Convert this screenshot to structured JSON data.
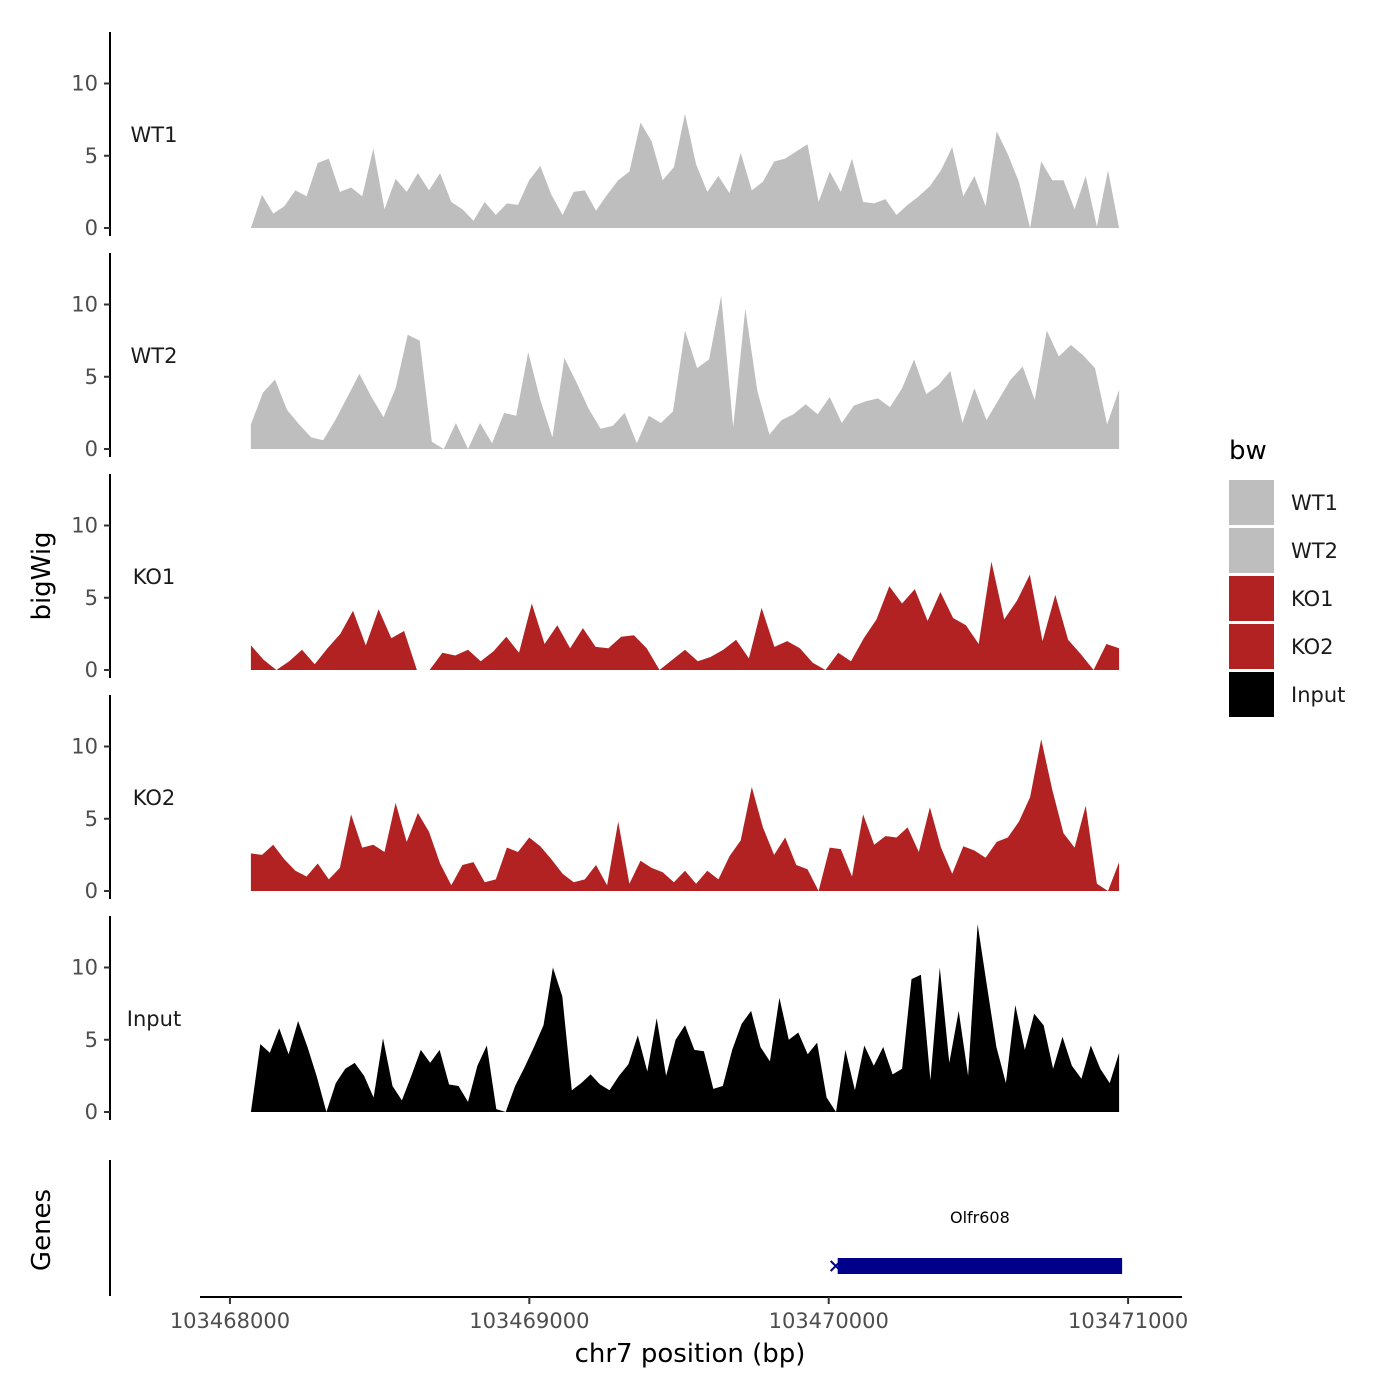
{
  "chart_data": {
    "type": "area",
    "title": "",
    "xlabel": "chr7 position (bp)",
    "ylabel": "bigWig",
    "genes_label": "Genes",
    "x_range": [
      103468070,
      103470970
    ],
    "xlim": [
      103467900,
      103471180
    ],
    "x_ticks": [
      103468000,
      103469000,
      103470000,
      103471000
    ],
    "x_tick_labels": [
      "103468000",
      "103469000",
      "103470000",
      "103471000"
    ],
    "ylim": [
      0,
      13.5
    ],
    "y_ticks": [
      0,
      5,
      10
    ],
    "y_tick_labels": [
      "0",
      "5",
      "10"
    ],
    "legend": {
      "title": "bw",
      "position": "right",
      "entries": [
        {
          "label": "WT1",
          "color": "#bebebe"
        },
        {
          "label": "WT2",
          "color": "#bebebe"
        },
        {
          "label": "KO1",
          "color": "#b22222"
        },
        {
          "label": "KO2",
          "color": "#b22222"
        },
        {
          "label": "Input",
          "color": "#000000"
        }
      ]
    },
    "series": [
      {
        "name": "WT1",
        "color": "#bebebe",
        "values": [
          0,
          2.3,
          1,
          1.5,
          2.6,
          2.2,
          4.5,
          4.8,
          2.5,
          2.8,
          2.2,
          5.5,
          1.3,
          3.4,
          2.5,
          3.8,
          2.6,
          3.8,
          1.8,
          1.3,
          0.5,
          1.8,
          0.9,
          1.7,
          1.6,
          3.3,
          4.3,
          2.3,
          0.9,
          2.5,
          2.6,
          1.2,
          2.3,
          3.3,
          3.9,
          7.3,
          6,
          3.3,
          4.2,
          7.9,
          4.4,
          2.5,
          3.6,
          2.4,
          5.2,
          2.6,
          3.2,
          4.6,
          4.8,
          5.3,
          5.8,
          1.8,
          3.9,
          2.5,
          4.8,
          1.8,
          1.7,
          2,
          0.9,
          1.6,
          2.2,
          2.9,
          4,
          5.6,
          2.2,
          3.6,
          1.5,
          6.7,
          5.1,
          3.2,
          0,
          4.6,
          3.3,
          3.3,
          1.3,
          3.6,
          0.1,
          4,
          0
        ]
      },
      {
        "name": "WT2",
        "color": "#bebebe",
        "values": [
          1.7,
          3.9,
          4.8,
          2.7,
          1.7,
          0.8,
          0.6,
          2,
          3.6,
          5.2,
          3.6,
          2.2,
          4.2,
          7.9,
          7.5,
          0.5,
          0,
          1.8,
          0,
          1.8,
          0.4,
          2.5,
          2.3,
          6.7,
          3.4,
          0.8,
          6.3,
          4.6,
          2.8,
          1.4,
          1.6,
          2.5,
          0.4,
          2.3,
          1.8,
          2.6,
          8.2,
          5.6,
          6.2,
          10.6,
          1.5,
          9.7,
          4,
          1,
          2,
          2.4,
          3.1,
          2.4,
          3.6,
          1.8,
          3,
          3.3,
          3.5,
          2.9,
          4.2,
          6.2,
          3.8,
          4.4,
          5.4,
          1.8,
          4.2,
          2,
          3.4,
          4.8,
          5.7,
          3.4,
          8.2,
          6.4,
          7.2,
          6.5,
          5.6,
          1.7,
          4.1
        ]
      },
      {
        "name": "KO1",
        "color": "#b22222",
        "values": [
          1.7,
          0.7,
          0,
          0.6,
          1.4,
          0.4,
          1.5,
          2.5,
          4.1,
          1.7,
          4.2,
          2.2,
          2.7,
          0,
          0,
          1.2,
          1,
          1.4,
          0.6,
          1.3,
          2.3,
          1.2,
          4.6,
          1.8,
          3.1,
          1.5,
          2.9,
          1.6,
          1.5,
          2.3,
          2.4,
          1.5,
          0,
          0.7,
          1.4,
          0.6,
          0.9,
          1.4,
          2.1,
          0.8,
          4.3,
          1.6,
          2,
          1.5,
          0.5,
          0,
          1.2,
          0.6,
          2.2,
          3.5,
          5.8,
          4.6,
          5.6,
          3.4,
          5.4,
          3.6,
          3.1,
          1.8,
          7.5,
          3.5,
          4.8,
          6.6,
          2,
          5.2,
          2.1,
          1.1,
          0,
          1.8,
          1.5
        ]
      },
      {
        "name": "KO2",
        "color": "#b22222",
        "values": [
          2.6,
          2.5,
          3.2,
          2.2,
          1.4,
          1,
          1.9,
          0.8,
          1.6,
          5.3,
          3,
          3.2,
          2.7,
          6.1,
          3.4,
          5.4,
          4.1,
          1.9,
          0.4,
          1.8,
          2,
          0.6,
          0.8,
          3,
          2.7,
          3.7,
          3.1,
          2.2,
          1.2,
          0.6,
          0.8,
          1.8,
          0.4,
          4.8,
          0.5,
          2.1,
          1.6,
          1.3,
          0.6,
          1.4,
          0.5,
          1.4,
          0.8,
          2.4,
          3.5,
          7.2,
          4.4,
          2.5,
          3.7,
          1.8,
          1.5,
          0,
          3,
          2.9,
          1,
          5.3,
          3.2,
          3.8,
          3.7,
          4.4,
          2.7,
          5.8,
          3,
          1.2,
          3.1,
          2.8,
          2.3,
          3.4,
          3.7,
          4.8,
          6.5,
          10.5,
          7,
          4,
          3,
          5.9,
          0.5,
          0,
          2
        ]
      },
      {
        "name": "Input",
        "color": "#000000",
        "values": [
          0,
          4.7,
          4.1,
          5.8,
          4,
          6.3,
          4.5,
          2.4,
          0,
          2,
          3,
          3.4,
          2.5,
          1,
          5.1,
          1.8,
          0.8,
          2.5,
          4.3,
          3.4,
          4.3,
          1.9,
          1.8,
          0.7,
          3.2,
          4.6,
          0.2,
          0,
          1.8,
          3.1,
          4.5,
          6,
          10,
          8,
          1.5,
          2,
          2.6,
          1.9,
          1.5,
          2.5,
          3.3,
          5.3,
          2.8,
          6.5,
          2.5,
          5,
          6,
          4.3,
          4.2,
          1.6,
          1.8,
          4.3,
          6.1,
          7,
          4.5,
          3.5,
          7.9,
          5,
          5.5,
          4,
          4.8,
          1,
          0,
          4.3,
          1.5,
          4.6,
          3.2,
          4.5,
          2.6,
          3,
          9.2,
          9.5,
          2.2,
          10,
          3.4,
          7,
          2.5,
          13,
          8.7,
          4.5,
          2,
          7.4,
          4.3,
          6.8,
          6,
          3,
          5.2,
          3.2,
          2.3,
          4.6,
          3,
          2,
          4.1
        ]
      }
    ],
    "genes": [
      {
        "name": "Olfr608",
        "start": 103470030,
        "end": 103470980,
        "strand": "-",
        "color": "#00008b"
      }
    ]
  }
}
